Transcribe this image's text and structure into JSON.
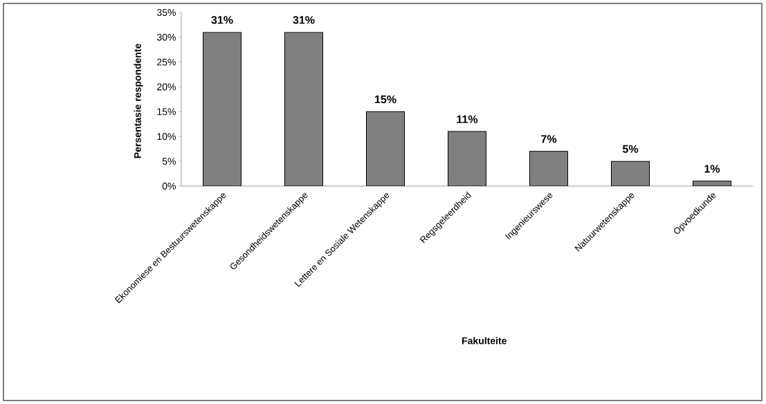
{
  "chart_data": {
    "type": "bar",
    "xlabel": "Fakulteite",
    "ylabel": "Persentasie respondente",
    "categories": [
      "Ekonomiese en Bestuurswetenskappe",
      "Gesondheidswetenskappe",
      "Lettere en Sosiale Wetenskappe",
      "Regsgeleerdheid",
      "Ingenieurswese",
      "Natuurwetenskappe",
      "Opvoedkunde"
    ],
    "values": [
      31,
      31,
      15,
      11,
      7,
      5,
      1
    ],
    "value_labels": [
      "31%",
      "31%",
      "15%",
      "11%",
      "7%",
      "5%",
      "1%"
    ],
    "color": "#808080",
    "ylim": [
      0,
      35
    ],
    "yticks": [
      {
        "value": 0,
        "label": "0%"
      },
      {
        "value": 5,
        "label": "5%"
      },
      {
        "value": 10,
        "label": "10%"
      },
      {
        "value": 15,
        "label": "15%"
      },
      {
        "value": 20,
        "label": "20%"
      },
      {
        "value": 25,
        "label": "25%"
      },
      {
        "value": 30,
        "label": "30%"
      },
      {
        "value": 35,
        "label": "35%"
      }
    ],
    "grid": false
  }
}
